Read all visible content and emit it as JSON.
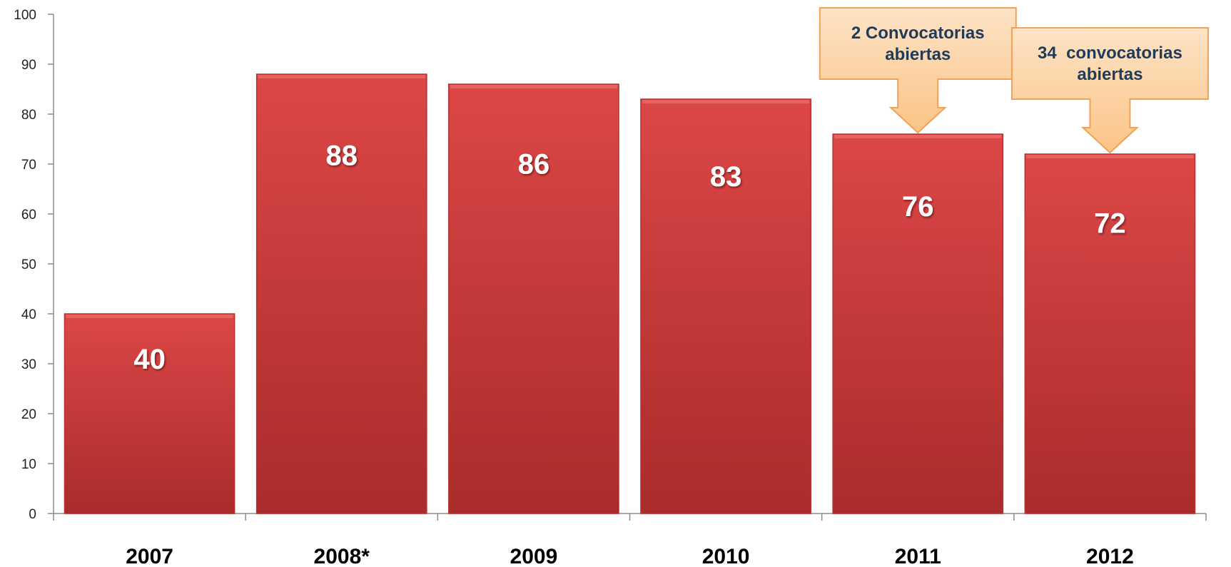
{
  "chart_data": {
    "type": "bar",
    "categories": [
      "2007",
      "2008*",
      "2009",
      "2010",
      "2011",
      "2012"
    ],
    "values": [
      40,
      88,
      86,
      83,
      76,
      72
    ],
    "ylim": [
      0,
      100
    ],
    "yticks": [
      0,
      10,
      20,
      30,
      40,
      50,
      60,
      70,
      80,
      90,
      100
    ],
    "title": "",
    "xlabel": "",
    "ylabel": "",
    "grid": false,
    "bar_color": "#c83a38",
    "annotations": [
      {
        "category": "2011",
        "lines": [
          "2 Convocatorias",
          "abiertas"
        ]
      },
      {
        "category": "2012",
        "lines": [
          "34  convocatorias",
          "abiertas"
        ]
      }
    ],
    "annotation_fill": "#fcd3a6",
    "annotation_stroke": "#f0a25a"
  }
}
